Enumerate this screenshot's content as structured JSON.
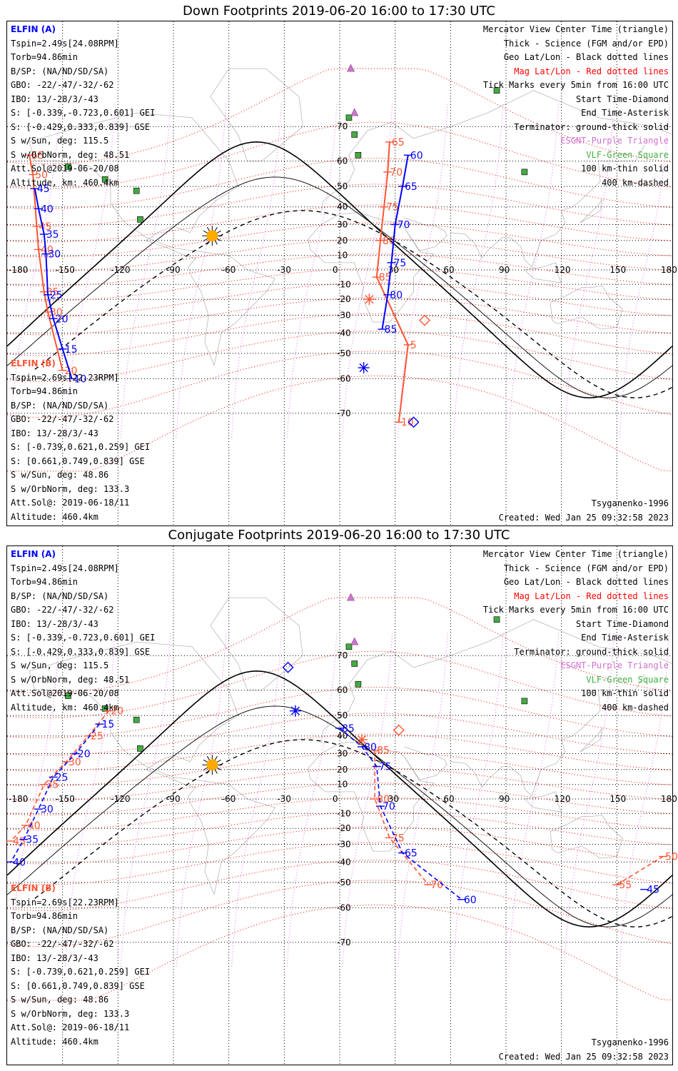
{
  "colors": {
    "elfin_a": "#0000ff",
    "elfin_b": "#ff5533",
    "geo_grid": "#000000",
    "mag_grid": "#ff0000",
    "esgnt": "#cc66cc",
    "vlf": "#44aa44",
    "sun": "#ffaa00"
  },
  "lon_labels": [
    "-180",
    "-150",
    "-120",
    "-90",
    "-60",
    "-30",
    "0",
    "30",
    "60",
    "90",
    "120",
    "150",
    "180"
  ],
  "lat_labels": [
    "70",
    "60",
    "50",
    "40",
    "30",
    "20",
    "10",
    "-10",
    "-20",
    "-30",
    "-40",
    "-50",
    "-60",
    "-70"
  ],
  "legend": [
    "Mercator View Center Time (triangle)",
    "Thick - Science (FGM and/or EPD)",
    "Geo Lat/Lon - Black dotted lines",
    "Mag Lat/Lon - Red dotted lines",
    "Tick Marks every 5min from 16:00 UTC",
    "Start Time-Diamond",
    "End Time-Asterisk",
    "Terminator: ground-thick solid",
    "ESGNT-Purple Triangle",
    "VLF-Green Square",
    "100 km-thin solid",
    "400 km-dashed"
  ],
  "elfin_a": {
    "header": "ELFIN (A)",
    "lines": [
      "Tspin=2.49s[24.08RPM]",
      "Torb=94.86min",
      "B/SP: (NA/ND/SD/SA)",
      "GBO: -22/-47/-32/-62",
      "IBO: 13/-28/3/-43",
      "S: [-0.339,-0.723,0.601] GEI",
      "S: [-0.429,0.333,0.839] GSE",
      "S w/Sun, deg: 115.5",
      "S w/OrbNorm, deg: 48.51",
      "Att.Sol@2019-06-20/08",
      "Altitude, km: 460.4km"
    ]
  },
  "elfin_b": {
    "header": "ELFIN (B)",
    "lines": [
      "Tspin=2.69s[22.23RPM]",
      "Torb=94.86min",
      "B/SP: (NA/ND/SD/SA)",
      "GBO: -22/-47/-32/-62",
      "IBO: 13/-28/3/-43",
      "S: [-0.739,0.621,0.259] GEI",
      "S: [0.661,0.749,0.839] GSE",
      "S w/Sun, deg: 48.86",
      "S w/OrbNorm, deg: 133.3",
      "Att.Sol@: 2019-06-18/11",
      "Altitude: 460.4km"
    ]
  },
  "model": "Tsyganenko-1996",
  "created": "Created: Wed Jan 25 09:32:58 2023",
  "panels": [
    {
      "title": "Down Footprints 2019-06-20 16:00 to 17:30 UTC",
      "a_ticks": [
        {
          "lon": -165,
          "lat": 49,
          "t": "45"
        },
        {
          "lon": -163,
          "lat": 39,
          "t": "40"
        },
        {
          "lon": -160,
          "lat": 24,
          "t": "35"
        },
        {
          "lon": -159,
          "lat": 11,
          "t": "30"
        },
        {
          "lon": -158,
          "lat": -17,
          "t": "25"
        },
        {
          "lon": -155,
          "lat": -32,
          "t": "20"
        },
        {
          "lon": -150,
          "lat": -48,
          "t": "15"
        },
        {
          "lon": -145,
          "lat": -60,
          "t": "10"
        },
        {
          "lon": 37,
          "lat": 62,
          "t": "60"
        },
        {
          "lon": 34,
          "lat": 50,
          "t": "65"
        },
        {
          "lon": 30,
          "lat": 30,
          "t": "70"
        },
        {
          "lon": 28,
          "lat": 5,
          "t": "75"
        },
        {
          "lon": 26,
          "lat": -17,
          "t": "80"
        },
        {
          "lon": 23,
          "lat": -38,
          "t": "85"
        }
      ],
      "b_ticks": [
        {
          "lon": -168,
          "lat": 62,
          "t": "55"
        },
        {
          "lon": -166,
          "lat": 55,
          "t": "50"
        },
        {
          "lon": -164,
          "lat": 29,
          "t": "45"
        },
        {
          "lon": -163,
          "lat": 14,
          "t": "40"
        },
        {
          "lon": -160,
          "lat": -15,
          "t": "35"
        },
        {
          "lon": -158,
          "lat": -28,
          "t": "30"
        },
        {
          "lon": -150,
          "lat": -57,
          "t": "20"
        },
        {
          "lon": 27,
          "lat": 66,
          "t": "65"
        },
        {
          "lon": 26,
          "lat": 56,
          "t": "70"
        },
        {
          "lon": 24,
          "lat": 40,
          "t": "75"
        },
        {
          "lon": 22,
          "lat": 20,
          "t": "80"
        },
        {
          "lon": 20,
          "lat": -5,
          "t": "85"
        },
        {
          "lon": 37,
          "lat": -46,
          "t": "5"
        },
        {
          "lon": 32,
          "lat": -72,
          "t": "10"
        }
      ]
    },
    {
      "title": "Conjugate Footprints 2019-06-20 16:00 to 17:30 UTC",
      "a_ticks": [
        {
          "lon": 0,
          "lat": 44,
          "t": "85"
        },
        {
          "lon": 12,
          "lat": 34,
          "t": "80"
        },
        {
          "lon": 20,
          "lat": 22,
          "t": "75"
        },
        {
          "lon": 22,
          "lat": -5,
          "t": "70"
        },
        {
          "lon": 34,
          "lat": -35,
          "t": "65"
        },
        {
          "lon": 66,
          "lat": -57,
          "t": "60"
        },
        {
          "lon": 165,
          "lat": -53,
          "t": "45"
        },
        {
          "lon": -130,
          "lat": 46,
          "t": "15"
        },
        {
          "lon": -143,
          "lat": 30,
          "t": "20"
        },
        {
          "lon": -155,
          "lat": 15,
          "t": "25"
        },
        {
          "lon": -163,
          "lat": -7,
          "t": "30"
        },
        {
          "lon": -171,
          "lat": -27,
          "t": "35"
        },
        {
          "lon": -178,
          "lat": -40,
          "t": "40"
        }
      ],
      "b_ticks": [
        {
          "lon": 19,
          "lat": 32,
          "t": "85"
        },
        {
          "lon": 19,
          "lat": 0,
          "t": "80"
        },
        {
          "lon": 27,
          "lat": -26,
          "t": "75"
        },
        {
          "lon": 48,
          "lat": -51,
          "t": "70"
        },
        {
          "lon": 150,
          "lat": -51,
          "t": "55"
        },
        {
          "lon": 175,
          "lat": -37,
          "t": "50"
        },
        {
          "lon": -125,
          "lat": 52,
          "t": "20"
        },
        {
          "lon": -136,
          "lat": 40,
          "t": "25"
        },
        {
          "lon": -148,
          "lat": 25,
          "t": "30"
        },
        {
          "lon": -160,
          "lat": 10,
          "t": "35"
        },
        {
          "lon": -170,
          "lat": -18,
          "t": "40"
        },
        {
          "lon": -178,
          "lat": -28,
          "t": "45"
        }
      ]
    }
  ]
}
